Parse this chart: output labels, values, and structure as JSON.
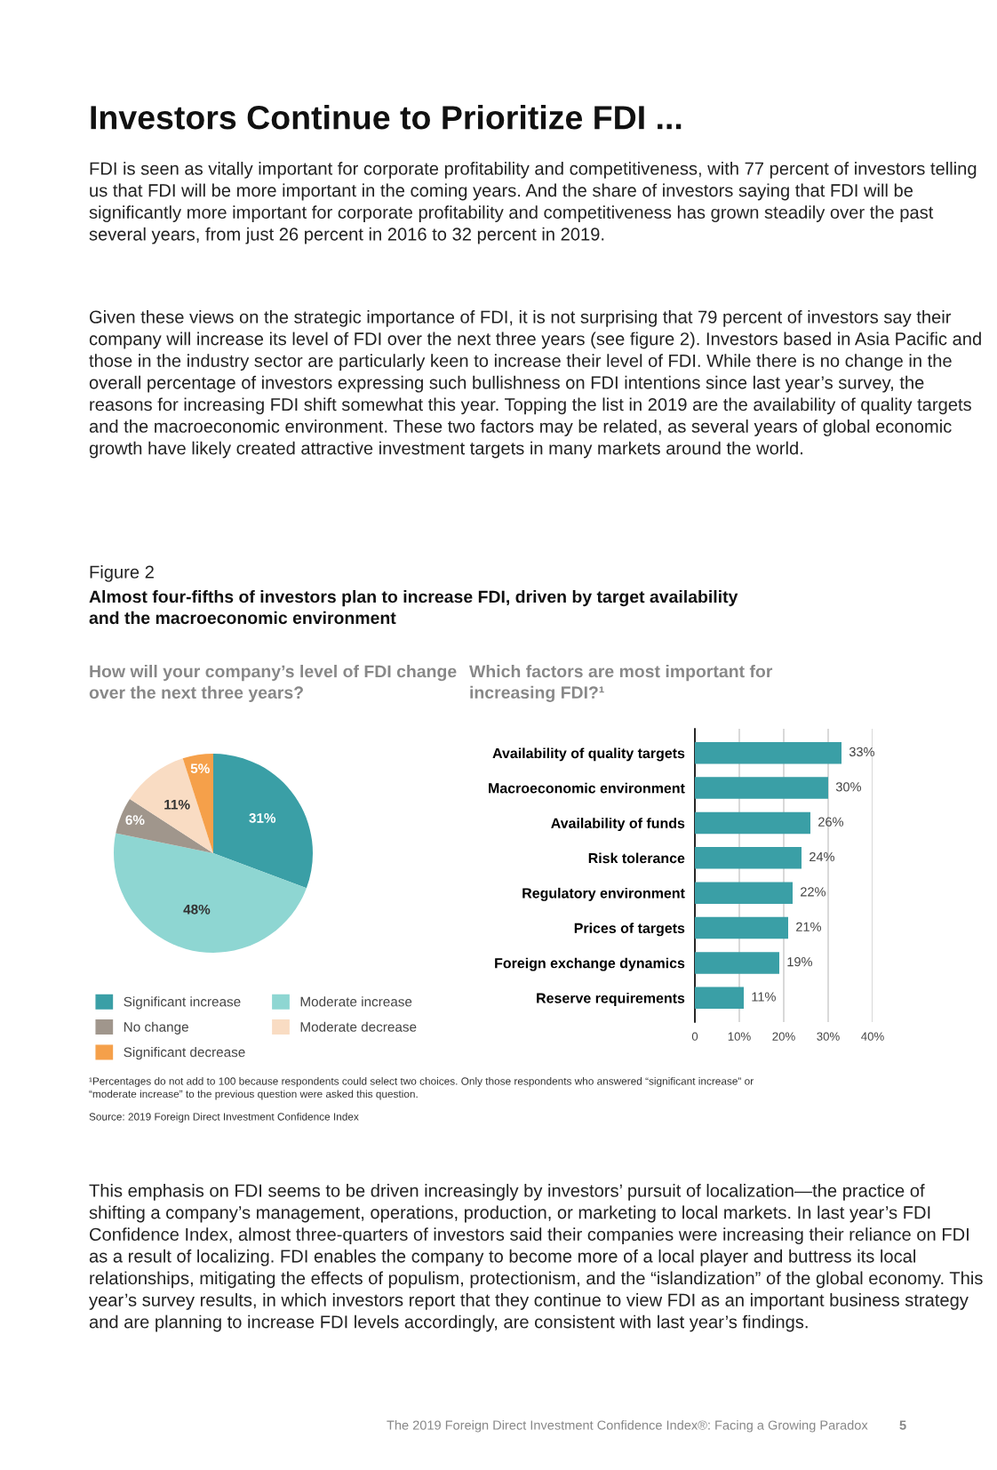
{
  "chart_data": [
    {
      "type": "pie",
      "title": "How will your company’s level of FDI change over the next three years?",
      "categories": [
        "Significant increase",
        "Moderate increase",
        "No change",
        "Moderate decrease",
        "Significant decrease"
      ],
      "values": [
        31,
        48,
        6,
        11,
        5
      ],
      "colors": [
        "#3a9fa6",
        "#8ed6d2",
        "#a0968c",
        "#f9dcc3",
        "#f5a04a"
      ],
      "value_labels": [
        "31%",
        "48%",
        "6%",
        "11%",
        "5%"
      ],
      "legend": "bottom",
      "annotations": [
        "Investors Continue to Prioritize FDI ...",
        "FDI is seen as vitally important for corporate profitability and competitiveness, with 77 percent of investors telling us that FDI will be more important in the coming years. And the share of investors saying that FDI will be significantly more important for corporate profitability and competitiveness has grown steadily over the past several years, from just 26 percent in 2016 to 32 percent in 2019.",
        "Given these views on the strategic importance of FDI, it is not surprising that 79 percent of investors say their company will increase its level of FDI over the next three years (see figure 2). Investors based in Asia Pacific and those in the industry sector are particularly keen to increase their level of FDI. While there is no change in the overall percentage of investors expressing such bullishness on FDI intentions since last year’s survey, the reasons for increasing FDI shift somewhat this year. Topping the list in 2019 are the availability of quality targets and the macroeconomic environment. These two factors may be related, as several years of global economic growth have likely created attractive investment targets in many markets around the world.",
        "Figure 2",
        "Almost four-fifths of investors plan to increase FDI, driven by target availability and the macroeconomic environment",
        "¹Percentages do not add to 100 because respondents could select two choices. Only those respondents who answered “significant increase” or “moderate increase” to the previous question were asked this question.",
        "Source: 2019 Foreign Direct Investment Confidence Index",
        "This emphasis on FDI seems to be driven increasingly by investors’ pursuit of localization—the practice of shifting a company’s management, operations, production, or marketing to local markets. In last year’s FDI Confidence Index, almost three-quarters of investors said their companies were increasing their reliance on FDI as a result of localizing. FDI enables the company to become more of a local player and buttress its local relationships, mitigating the effects of populism, protectionism, and the “islandization” of the global economy. This year’s survey results, in which investors report that they continue to view FDI as an important business strategy and are planning to increase FDI levels accordingly, are consistent with last year’s findings.",
        "The 2019 Foreign Direct Investment Confidence Index®: Facing a Growing Paradox",
        "5"
      ]
    },
    {
      "type": "bar",
      "orientation": "horizontal",
      "title": "Which factors are most important for increasing FDI?¹",
      "categories": [
        "Availability of quality targets",
        "Macroeconomic environment",
        "Availability of funds",
        "Risk tolerance",
        "Regulatory environment",
        "Prices of targets",
        "Foreign exchange dynamics",
        "Reserve requirements"
      ],
      "values": [
        33,
        30,
        26,
        24,
        22,
        21,
        19,
        11
      ],
      "color": "#3a9fa6",
      "value_labels": [
        "33%",
        "30%",
        "26%",
        "24%",
        "22%",
        "21%",
        "19%",
        "11%"
      ],
      "xlim": [
        0,
        40
      ],
      "xticks": [
        0,
        {
          "value": 10,
          "label": "10%"
        },
        {
          "value": 20,
          "label": "20%"
        },
        {
          "value": 30,
          "label": "30%"
        },
        {
          "value": 40,
          "label": "40%"
        }
      ],
      "grid": "x"
    }
  ]
}
